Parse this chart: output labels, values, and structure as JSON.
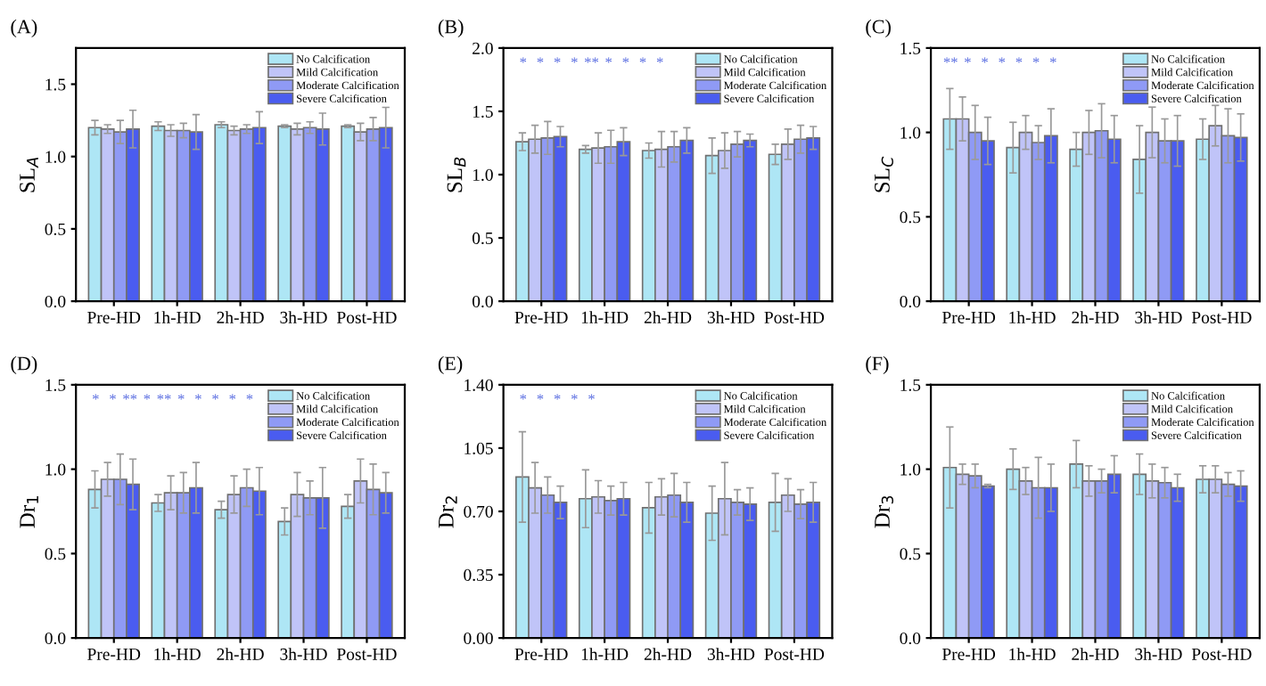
{
  "chart_data": [
    {
      "type": "bar",
      "title": "(A)",
      "ylabel": "SL$_{A}$",
      "categories": [
        "Pre-HD",
        "1h-HD",
        "2h-HD",
        "3h-HD",
        "Post-HD"
      ],
      "ylim": [
        0,
        1.75
      ],
      "yticks": [
        {
          "value": 0,
          "label": "0.0"
        },
        {
          "value": 0.5,
          "label": "0.5"
        },
        {
          "value": 1.0,
          "label": "1.0"
        },
        {
          "value": 1.5,
          "label": "1.5"
        }
      ],
      "legend": "top right",
      "series": [
        {
          "name": "No Calcification",
          "color": "#aee6f5",
          "values": [
            1.2,
            1.21,
            1.22,
            1.21,
            1.21
          ],
          "errors": [
            0.05,
            0.03,
            0.02,
            0.01,
            0.01
          ]
        },
        {
          "name": "Mild Calcification",
          "color": "#c0c4f8",
          "values": [
            1.19,
            1.18,
            1.18,
            1.19,
            1.17
          ],
          "errors": [
            0.03,
            0.04,
            0.03,
            0.04,
            0.06
          ]
        },
        {
          "name": "Moderate Calcification",
          "color": "#8f9af5",
          "values": [
            1.17,
            1.18,
            1.19,
            1.2,
            1.19
          ],
          "errors": [
            0.08,
            0.05,
            0.03,
            0.04,
            0.08
          ]
        },
        {
          "name": "Severe Calcification",
          "color": "#4a5cf0",
          "values": [
            1.19,
            1.17,
            1.2,
            1.19,
            1.2
          ],
          "errors": [
            0.13,
            0.12,
            0.11,
            0.11,
            0.14
          ]
        }
      ]
    },
    {
      "type": "bar",
      "title": "(B)",
      "ylabel": "SL$_{B}$",
      "categories": [
        "Pre-HD",
        "1h-HD",
        "2h-HD",
        "3h-HD",
        "Post-HD"
      ],
      "ylim": [
        0,
        2.0
      ],
      "yticks": [
        {
          "value": 0,
          "label": "0.0"
        },
        {
          "value": 0.5,
          "label": "0.5"
        },
        {
          "value": 1.0,
          "label": "1.0"
        },
        {
          "value": 1.5,
          "label": "1.5"
        },
        {
          "value": 2.0,
          "label": "2.0"
        }
      ],
      "legend": "top right",
      "series": [
        {
          "name": "No Calcification",
          "color": "#aee6f5",
          "values": [
            1.26,
            1.2,
            1.19,
            1.15,
            1.16
          ],
          "errors": [
            0.07,
            0.03,
            0.06,
            0.14,
            0.08
          ]
        },
        {
          "name": "Mild Calcification",
          "color": "#c0c4f8",
          "values": [
            1.28,
            1.21,
            1.2,
            1.19,
            1.24
          ],
          "errors": [
            0.11,
            0.12,
            0.14,
            0.14,
            0.12
          ]
        },
        {
          "name": "Moderate Calcification",
          "color": "#8f9af5",
          "values": [
            1.29,
            1.22,
            1.22,
            1.24,
            1.28
          ],
          "errors": [
            0.13,
            0.13,
            0.12,
            0.1,
            0.11
          ]
        },
        {
          "name": "Severe Calcification",
          "color": "#4a5cf0",
          "values": [
            1.3,
            1.26,
            1.27,
            1.27,
            1.29
          ],
          "errors": [
            0.08,
            0.11,
            0.1,
            0.05,
            0.09
          ]
        }
      ],
      "annotations": [
        "*",
        "*",
        "*",
        "*",
        "**",
        "*",
        "*",
        "*",
        "*"
      ]
    },
    {
      "type": "bar",
      "title": "(C)",
      "ylabel": "SL$_{C}$",
      "categories": [
        "Pre-HD",
        "1h-HD",
        "2h-HD",
        "3h-HD",
        "Post-HD"
      ],
      "ylim": [
        0,
        1.5
      ],
      "yticks": [
        {
          "value": 0,
          "label": "0.0"
        },
        {
          "value": 0.5,
          "label": "0.5"
        },
        {
          "value": 1.0,
          "label": "1.0"
        },
        {
          "value": 1.5,
          "label": "1.5"
        }
      ],
      "legend": "top right",
      "series": [
        {
          "name": "No Calcification",
          "color": "#aee6f5",
          "values": [
            1.08,
            0.91,
            0.9,
            0.84,
            0.96
          ],
          "errors": [
            0.18,
            0.15,
            0.1,
            0.2,
            0.12
          ]
        },
        {
          "name": "Mild Calcification",
          "color": "#c0c4f8",
          "values": [
            1.08,
            1.0,
            1.0,
            1.0,
            1.04
          ],
          "errors": [
            0.13,
            0.1,
            0.13,
            0.15,
            0.12
          ]
        },
        {
          "name": "Moderate Calcification",
          "color": "#8f9af5",
          "values": [
            1.0,
            0.94,
            1.01,
            0.95,
            0.98
          ],
          "errors": [
            0.16,
            0.1,
            0.16,
            0.13,
            0.16
          ]
        },
        {
          "name": "Severe Calcification",
          "color": "#4a5cf0",
          "values": [
            0.95,
            0.98,
            0.96,
            0.95,
            0.97
          ],
          "errors": [
            0.14,
            0.16,
            0.14,
            0.15,
            0.14
          ]
        }
      ],
      "annotations": [
        "**",
        "*",
        "*",
        "*",
        "*",
        "*",
        "*"
      ]
    },
    {
      "type": "bar",
      "title": "(D)",
      "ylabel": "Dr$_{1}$",
      "categories": [
        "Pre-HD",
        "1h-HD",
        "2h-HD",
        "3h-HD",
        "Post-HD"
      ],
      "ylim": [
        0,
        1.5
      ],
      "yticks": [
        {
          "value": 0,
          "label": "0.0"
        },
        {
          "value": 0.5,
          "label": "0.5"
        },
        {
          "value": 1.0,
          "label": "1.0"
        },
        {
          "value": 1.5,
          "label": "1.5"
        }
      ],
      "legend": "top right",
      "series": [
        {
          "name": "No Calcification",
          "color": "#aee6f5",
          "values": [
            0.88,
            0.8,
            0.76,
            0.69,
            0.78
          ],
          "errors": [
            0.11,
            0.05,
            0.05,
            0.08,
            0.07
          ]
        },
        {
          "name": "Mild Calcification",
          "color": "#c0c4f8",
          "values": [
            0.94,
            0.86,
            0.85,
            0.85,
            0.93
          ],
          "errors": [
            0.1,
            0.1,
            0.11,
            0.13,
            0.13
          ]
        },
        {
          "name": "Moderate Calcification",
          "color": "#8f9af5",
          "values": [
            0.94,
            0.86,
            0.89,
            0.83,
            0.88
          ],
          "errors": [
            0.15,
            0.12,
            0.11,
            0.1,
            0.15
          ]
        },
        {
          "name": "Severe Calcification",
          "color": "#4a5cf0",
          "values": [
            0.91,
            0.89,
            0.87,
            0.83,
            0.86
          ],
          "errors": [
            0.15,
            0.15,
            0.14,
            0.18,
            0.12
          ]
        }
      ],
      "annotations": [
        "*",
        "*",
        "**",
        "*",
        "**",
        "*",
        "*",
        "*",
        "*",
        "*"
      ]
    },
    {
      "type": "bar",
      "title": "(E)",
      "ylabel": "Dr$_{2}$",
      "categories": [
        "Pre-HD",
        "1h-HD",
        "2h-HD",
        "3h-HD",
        "Post-HD"
      ],
      "ylim": [
        0,
        1.4
      ],
      "yticks": [
        {
          "value": 0,
          "label": "0.00"
        },
        {
          "value": 0.35,
          "label": "0.35"
        },
        {
          "value": 0.7,
          "label": "0.70"
        },
        {
          "value": 1.05,
          "label": "1.05"
        },
        {
          "value": 1.4,
          "label": "1.40"
        }
      ],
      "legend": "top right",
      "series": [
        {
          "name": "No Calcification",
          "color": "#aee6f5",
          "values": [
            0.89,
            0.77,
            0.72,
            0.69,
            0.75
          ],
          "errors": [
            0.25,
            0.16,
            0.14,
            0.15,
            0.16
          ]
        },
        {
          "name": "Mild Calcification",
          "color": "#c0c4f8",
          "values": [
            0.83,
            0.78,
            0.78,
            0.77,
            0.79
          ],
          "errors": [
            0.14,
            0.09,
            0.1,
            0.2,
            0.09
          ]
        },
        {
          "name": "Moderate Calcification",
          "color": "#8f9af5",
          "values": [
            0.79,
            0.76,
            0.79,
            0.75,
            0.74
          ],
          "errors": [
            0.1,
            0.08,
            0.12,
            0.07,
            0.08
          ]
        },
        {
          "name": "Severe Calcification",
          "color": "#4a5cf0",
          "values": [
            0.75,
            0.77,
            0.75,
            0.74,
            0.75
          ],
          "errors": [
            0.09,
            0.09,
            0.11,
            0.09,
            0.11
          ]
        }
      ],
      "annotations": [
        "*",
        "*",
        "*",
        "*",
        "*"
      ]
    },
    {
      "type": "bar",
      "title": "(F)",
      "ylabel": "Dr$_{3}$",
      "categories": [
        "Pre-HD",
        "1h-HD",
        "2h-HD",
        "3h-HD",
        "Post-HD"
      ],
      "ylim": [
        0,
        1.5
      ],
      "yticks": [
        {
          "value": 0,
          "label": "0.0"
        },
        {
          "value": 0.5,
          "label": "0.5"
        },
        {
          "value": 1.0,
          "label": "1.0"
        },
        {
          "value": 1.5,
          "label": "1.5"
        }
      ],
      "legend": "top right",
      "series": [
        {
          "name": "No Calcification",
          "color": "#aee6f5",
          "values": [
            1.01,
            1.0,
            1.03,
            0.97,
            0.94
          ],
          "errors": [
            0.24,
            0.12,
            0.14,
            0.12,
            0.08
          ]
        },
        {
          "name": "Mild Calcification",
          "color": "#c0c4f8",
          "values": [
            0.97,
            0.93,
            0.93,
            0.93,
            0.94
          ],
          "errors": [
            0.06,
            0.08,
            0.09,
            0.1,
            0.08
          ]
        },
        {
          "name": "Moderate Calcification",
          "color": "#8f9af5",
          "values": [
            0.96,
            0.89,
            0.93,
            0.92,
            0.91
          ],
          "errors": [
            0.07,
            0.18,
            0.07,
            0.09,
            0.07
          ]
        },
        {
          "name": "Severe Calcification",
          "color": "#4a5cf0",
          "values": [
            0.9,
            0.89,
            0.97,
            0.89,
            0.9
          ],
          "errors": [
            0.01,
            0.14,
            0.11,
            0.08,
            0.09
          ]
        }
      ]
    }
  ]
}
